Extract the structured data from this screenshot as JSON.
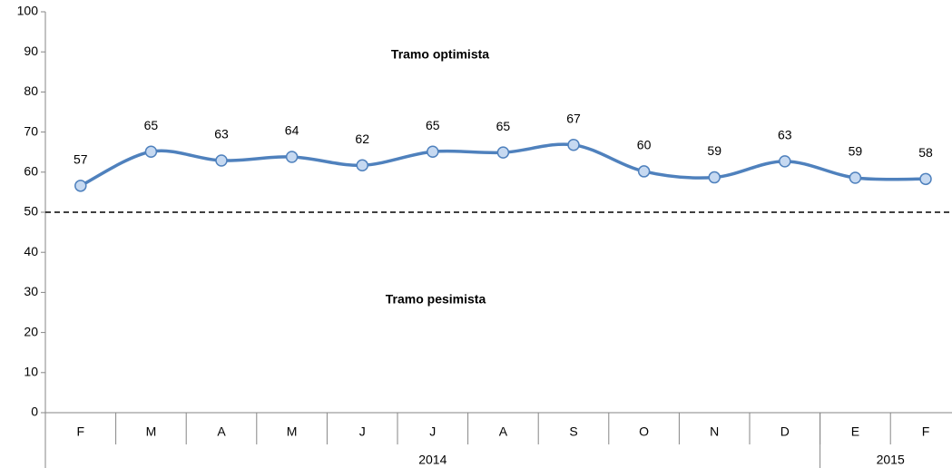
{
  "chart_data": {
    "type": "line",
    "categories": [
      "F",
      "M",
      "A",
      "M",
      "J",
      "J",
      "A",
      "S",
      "O",
      "N",
      "D",
      "E",
      "F"
    ],
    "year_groups": [
      {
        "label": "2014",
        "span": 11
      },
      {
        "label": "2015",
        "span": 2
      }
    ],
    "series": [
      {
        "color": "#4f81bd",
        "values": [
          56.6,
          65.1,
          62.9,
          63.8,
          61.7,
          65.1,
          64.9,
          66.8,
          60.2,
          58.7,
          62.7,
          58.6,
          58.3
        ],
        "value_labels": [
          "57",
          "65",
          "63",
          "64",
          "62",
          "65",
          "65",
          "67",
          "60",
          "59",
          "63",
          "59",
          "58"
        ]
      }
    ],
    "reference_line": 50,
    "annotations": [
      "Tramo optimista",
      "Tramo pesimista"
    ],
    "ylim": [
      0,
      100
    ],
    "yticks": [
      0,
      10,
      20,
      30,
      40,
      50,
      60,
      70,
      80,
      90,
      100
    ]
  }
}
